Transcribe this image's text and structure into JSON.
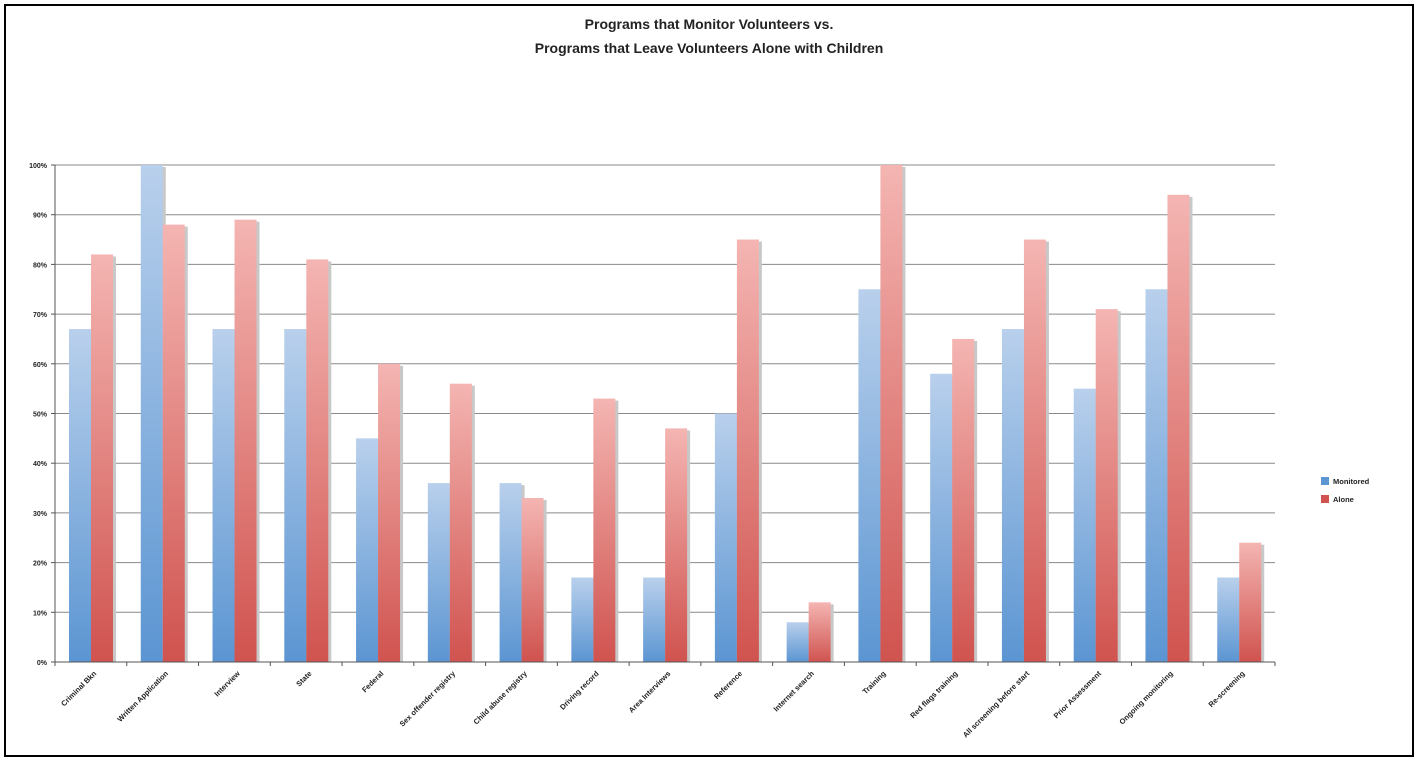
{
  "chart_data": {
    "type": "bar",
    "title": [
      "Programs that Monitor Volunteers vs.",
      "Programs that Leave Volunteers Alone with Children"
    ],
    "categories": [
      "Criminal Bkn",
      "Written Application",
      "Interview",
      "State",
      "Federal",
      "Sex offender registry",
      "Child abuse registry",
      "Driving record",
      "Area Interviews",
      "Reference",
      "Internet search",
      "Training",
      "Red flags training",
      "All screening before start",
      "Prior Assessment",
      "Ongoing monitoring",
      "Re-screening"
    ],
    "series": [
      {
        "name": "Monitored",
        "values": [
          67,
          100,
          67,
          67,
          45,
          36,
          36,
          17,
          17,
          50,
          8,
          75,
          58,
          67,
          55,
          75,
          17
        ]
      },
      {
        "name": "Alone",
        "values": [
          82,
          88,
          89,
          81,
          60,
          56,
          33,
          53,
          47,
          85,
          12,
          100,
          65,
          85,
          71,
          94,
          24
        ]
      }
    ],
    "yticks": [
      "0%",
      "10%",
      "20%",
      "30%",
      "40%",
      "50%",
      "60%",
      "70%",
      "80%",
      "90%",
      "100%"
    ],
    "ylim": [
      0,
      100
    ],
    "legend_position": "right",
    "grid": true,
    "colors": {
      "monitored_top": "#b9d0ec",
      "monitored_bottom": "#5b95d2",
      "alone_top": "#f4b5b2",
      "alone_bottom": "#d0534f"
    }
  }
}
